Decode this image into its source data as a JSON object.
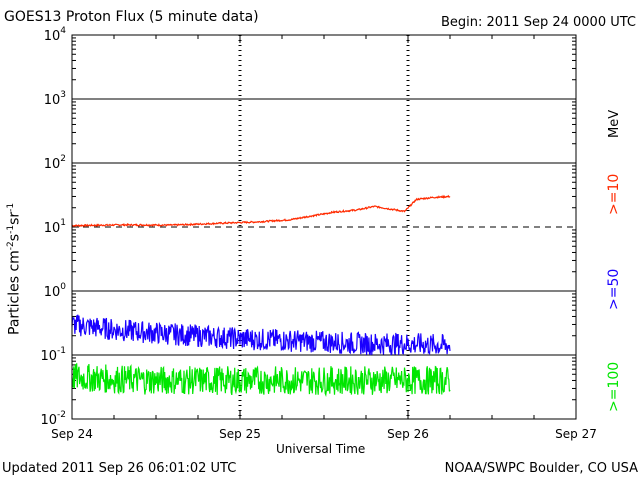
{
  "header": {
    "title": "GOES13 Proton Flux (5 minute data)",
    "begin": "Begin: 2011 Sep 24 0000 UTC"
  },
  "footer": {
    "updated": "Updated 2011 Sep 26 06:01:02 UTC",
    "source": "NOAA/SWPC Boulder, CO USA"
  },
  "legend": {
    "unit": "MeV",
    "entries": [
      {
        "label": ">=10",
        "color": "#ff2a00"
      },
      {
        "label": ">=50",
        "color": "#1a00ff"
      },
      {
        "label": ">=100",
        "color": "#00e600"
      }
    ]
  },
  "chart_data": {
    "type": "line",
    "title": "GOES13 Proton Flux (5 minute data)",
    "xlabel": "Universal Time",
    "ylabel": "Particles cm⁻²s⁻¹sr⁻¹",
    "ylabel_parts": {
      "base": "Particles cm",
      "e1": "-2",
      "mid1": "s",
      "e2": "-1",
      "mid2": "sr",
      "e3": "-1"
    },
    "yscale": "log",
    "ylim": [
      0.01,
      10000
    ],
    "yticks": [
      {
        "base": "10",
        "exp": "4",
        "value": 10000
      },
      {
        "base": "10",
        "exp": "3",
        "value": 1000
      },
      {
        "base": "10",
        "exp": "2",
        "value": 100
      },
      {
        "base": "10",
        "exp": "1",
        "value": 10
      },
      {
        "base": "10",
        "exp": "0",
        "value": 1
      },
      {
        "base": "10",
        "exp": "-1",
        "value": 0.1
      },
      {
        "base": "10",
        "exp": "-2",
        "value": 0.01
      }
    ],
    "xlim_days": [
      0,
      3
    ],
    "xticks": [
      "Sep 24",
      "Sep 25",
      "Sep 26",
      "Sep 27"
    ],
    "threshold": {
      "value": 10,
      "style": "dashed"
    },
    "grid": true,
    "series": [
      {
        "name": ">=10",
        "color": "#ff2a00",
        "x_days": [
          0.0,
          0.3,
          0.6,
          0.9,
          1.1,
          1.3,
          1.4,
          1.5,
          1.55,
          1.7,
          1.8,
          1.9,
          1.98,
          2.05,
          2.15,
          2.25
        ],
        "y": [
          10.5,
          10.8,
          10.7,
          11.5,
          12.0,
          13.0,
          14.5,
          16.0,
          17.0,
          18.5,
          21.0,
          19.0,
          17.5,
          27.0,
          29.0,
          30.0
        ]
      },
      {
        "name": ">=50",
        "color": "#1a00ff",
        "x_days": [
          0.0,
          0.25,
          0.5,
          0.75,
          1.0,
          1.25,
          1.5,
          1.75,
          2.0,
          2.25
        ],
        "y": [
          0.3,
          0.25,
          0.22,
          0.2,
          0.18,
          0.17,
          0.16,
          0.15,
          0.15,
          0.14
        ]
      },
      {
        "name": ">=100",
        "color": "#00e600",
        "x_days": [
          0.0,
          0.25,
          0.5,
          0.75,
          1.0,
          1.25,
          1.5,
          1.75,
          2.0,
          2.25
        ],
        "y": [
          0.045,
          0.042,
          0.04,
          0.04,
          0.04,
          0.04,
          0.04,
          0.04,
          0.04,
          0.04
        ]
      }
    ]
  }
}
